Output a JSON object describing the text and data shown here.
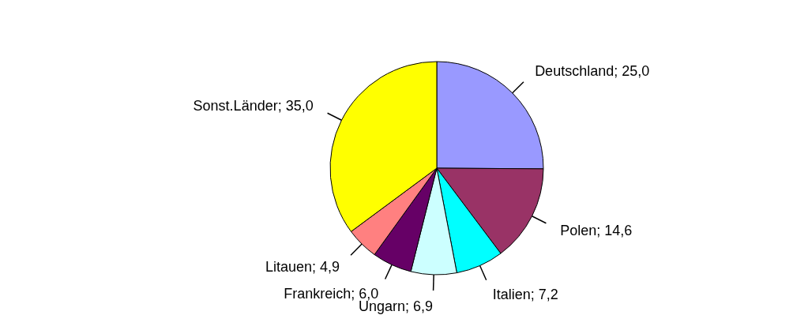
{
  "chart_data": {
    "type": "pie",
    "categories": [
      "Deutschland",
      "Polen",
      "Italien",
      "Ungarn",
      "Frankreich",
      "Litauen",
      "Sonst.Länder"
    ],
    "values": [
      25.0,
      14.6,
      7.2,
      6.9,
      6.0,
      4.9,
      35.0
    ],
    "value_labels": [
      "25,0",
      "14,6",
      "7,2",
      "6,9",
      "6,0",
      "4,9",
      "35,0"
    ],
    "colors": [
      "#9999ff",
      "#993366",
      "#00ffff",
      "#ccffff",
      "#660066",
      "#ff8080",
      "#ffff00"
    ],
    "legend": false
  }
}
